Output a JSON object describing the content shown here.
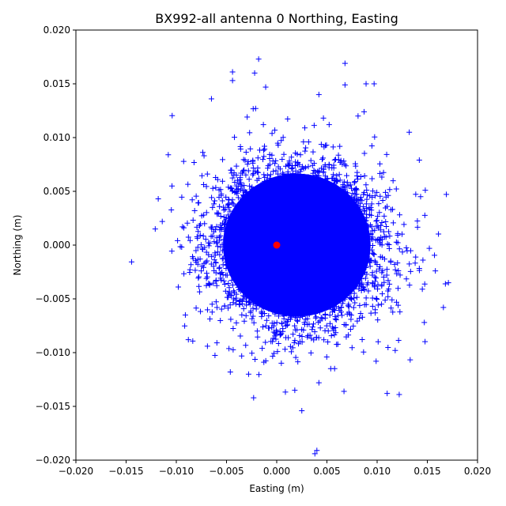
{
  "chart_data": {
    "type": "scatter",
    "title": "BX992-all antenna 0 Northing, Easting",
    "xlabel": "Easting (m)",
    "ylabel": "Northing (m)",
    "xlim": [
      -0.02,
      0.02
    ],
    "ylim": [
      -0.02,
      0.02
    ],
    "xticks": [
      "−0.020",
      "−0.015",
      "−0.010",
      "−0.005",
      "0.000",
      "0.005",
      "0.010",
      "0.015",
      "0.020"
    ],
    "yticks": [
      "−0.020",
      "−0.015",
      "−0.010",
      "−0.005",
      "0.000",
      "0.005",
      "0.010",
      "0.015",
      "0.020"
    ],
    "grid": false,
    "series": [
      {
        "marker": "plus",
        "color": "#0000ff",
        "distribution": {
          "center": [
            0.002,
            0.0
          ],
          "sigma_x": 0.0042,
          "sigma_y": 0.0038,
          "approx_count": 20000
        },
        "outliers": [
          [
            -0.0018,
            0.0173
          ],
          [
            0.0068,
            0.0169
          ],
          [
            -0.0044,
            0.0161
          ],
          [
            -0.0022,
            0.016
          ],
          [
            0.0089,
            0.015
          ],
          [
            0.0097,
            0.015
          ],
          [
            0.0068,
            0.0149
          ],
          [
            -0.0044,
            0.0153
          ],
          [
            -0.0011,
            0.0147
          ],
          [
            -0.0065,
            0.0136
          ],
          [
            0.0042,
            0.014
          ],
          [
            0.0087,
            0.0124
          ],
          [
            -0.0021,
            0.0127
          ],
          [
            0.0081,
            0.012
          ],
          [
            0.0132,
            0.0105
          ],
          [
            0.0142,
            0.0079
          ],
          [
            -0.0108,
            0.0084
          ],
          [
            -0.0118,
            0.0043
          ],
          [
            -0.0121,
            0.0015
          ],
          [
            -0.0114,
            0.0022
          ],
          [
            -0.0098,
            -0.0039
          ],
          [
            -0.0091,
            -0.0065
          ],
          [
            -0.0088,
            -0.0088
          ],
          [
            0.0152,
            -0.0003
          ],
          [
            0.0168,
            -0.0036
          ],
          [
            0.0171,
            -0.0035
          ],
          [
            0.0158,
            -0.0024
          ],
          [
            0.0147,
            -0.0072
          ],
          [
            0.0145,
            -0.0041
          ],
          [
            0.0166,
            -0.0058
          ],
          [
            0.0118,
            -0.0098
          ],
          [
            0.0099,
            -0.0108
          ],
          [
            0.0122,
            -0.0139
          ],
          [
            0.011,
            -0.0138
          ],
          [
            0.0067,
            -0.0136
          ],
          [
            0.0025,
            -0.0154
          ],
          [
            -0.0023,
            -0.0142
          ],
          [
            0.0042,
            -0.0128
          ],
          [
            0.004,
            -0.0191
          ],
          [
            0.0038,
            -0.0194
          ],
          [
            0.0018,
            -0.0135
          ],
          [
            -0.0028,
            -0.012
          ],
          [
            -0.0069,
            -0.0094
          ]
        ]
      },
      {
        "marker": "circle",
        "color": "#ff0000",
        "points": [
          [
            0.0,
            0.0
          ]
        ]
      }
    ]
  }
}
